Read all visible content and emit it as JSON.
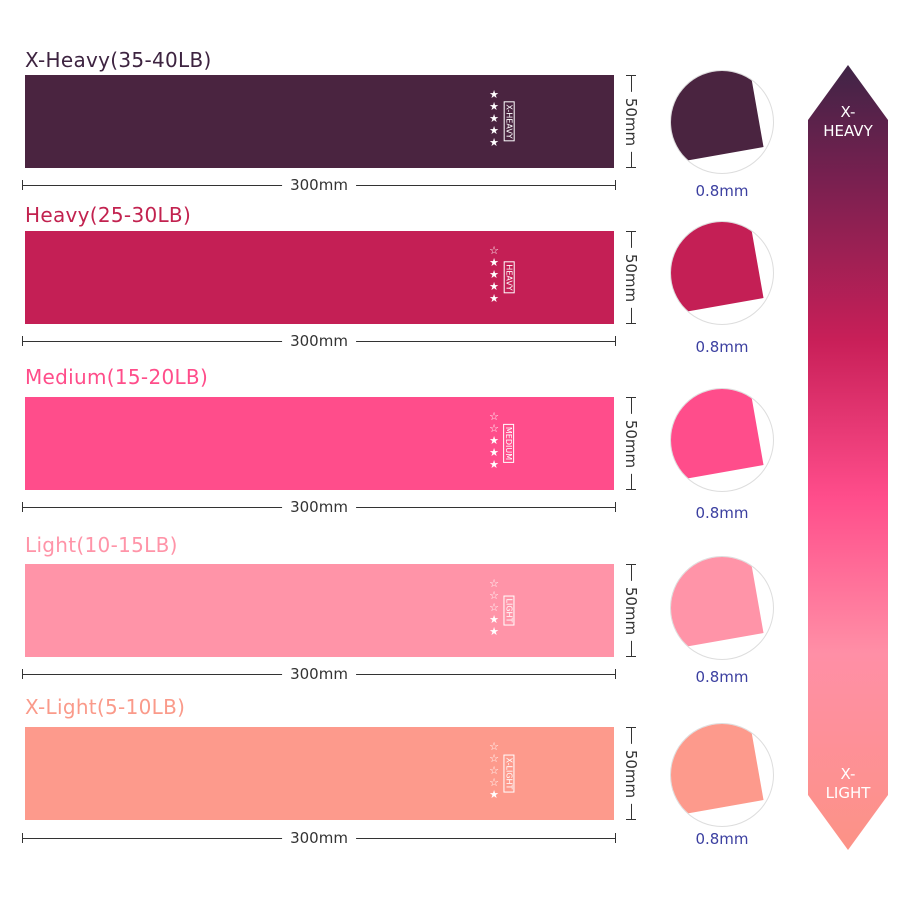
{
  "bands": [
    {
      "title": "X-Heavy(35-40LB)",
      "tag": "X-HEAVY",
      "stars_filled": 5,
      "stars_total": 5,
      "length": "300mm",
      "width": "50mm",
      "thickness": "0.8mm",
      "color": "#4a2440",
      "title_color": "#3d2340"
    },
    {
      "title": "Heavy(25-30LB)",
      "tag": "HEAVY",
      "stars_filled": 4,
      "stars_total": 5,
      "length": "300mm",
      "width": "50mm",
      "thickness": "0.8mm",
      "color": "#c41f55",
      "title_color": "#c2224f"
    },
    {
      "title": "Medium(15-20LB)",
      "tag": "MEDIUM",
      "stars_filled": 3,
      "stars_total": 5,
      "length": "300mm",
      "width": "50mm",
      "thickness": "0.8mm",
      "color": "#ff4d8b",
      "title_color": "#ff4d8a"
    },
    {
      "title": "Light(10-15LB)",
      "tag": "LIGHT",
      "stars_filled": 2,
      "stars_total": 5,
      "length": "300mm",
      "width": "50mm",
      "thickness": "0.8mm",
      "color": "#ff94a8",
      "title_color": "#ff94a8"
    },
    {
      "title": "X-Light(5-10LB)",
      "tag": "X-LIGHT",
      "stars_filled": 1,
      "stars_total": 5,
      "length": "300mm",
      "width": "50mm",
      "thickness": "0.8mm",
      "color": "#fd9a8c",
      "title_color": "#fa9a8a"
    }
  ],
  "scale": {
    "top": "X-\nHEAVY",
    "bottom": "X-\nLIGHT"
  }
}
